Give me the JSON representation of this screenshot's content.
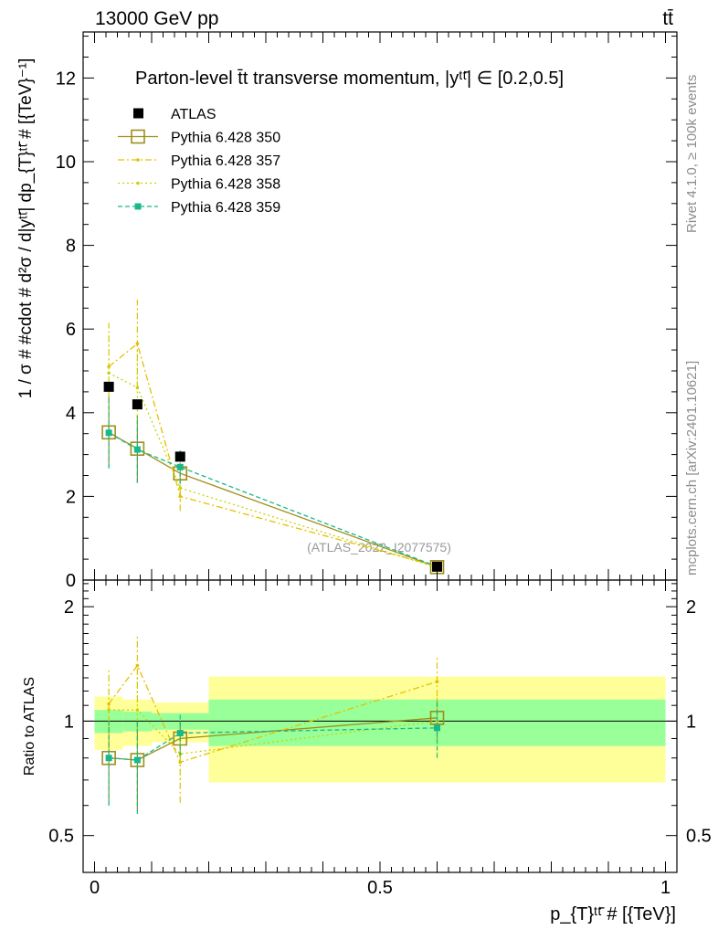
{
  "header": {
    "energy_label": "13000 GeV pp",
    "process_label": "tt̄"
  },
  "side_text": {
    "rivet": "Rivet 4.1.0, ≥ 100k events",
    "mcplots": "mcplots.cern.ch [arXiv:2401.10621]"
  },
  "chart_data": {
    "type": "line",
    "title": "Parton-level t̄t transverse momentum, |yᵗᵗ̄| ∈ [0.2,0.5]",
    "watermark": "(ATLAS_2022_I2077575)",
    "ylabel": "1 / σ # #cdot # d²σ / d|yᵗᵗ̄| dp_{T}ᵗᵗ̄ # [{TeV}⁻¹]",
    "ratio_ylabel": "Ratio to ATLAS",
    "xlabel": "p_{T}ᵗᵗ̄ # [{TeV}]",
    "xlim": [
      -0.02,
      1.02
    ],
    "ylim": [
      0,
      13.1
    ],
    "ratio_ylim": [
      0.4,
      2.35
    ],
    "x_ticks": [
      0,
      0.5,
      1
    ],
    "x_tick_labels": [
      "0",
      "0.5",
      "1"
    ],
    "y_ticks": [
      0,
      2,
      4,
      6,
      8,
      10,
      12
    ],
    "y_tick_labels": [
      "0",
      "2",
      "4",
      "6",
      "8",
      "10",
      "12"
    ],
    "ratio_ticks": [
      0.5,
      1,
      2
    ],
    "ratio_tick_labels": [
      "0.5",
      "1",
      "2"
    ],
    "bins": [
      {
        "lo": 0.0,
        "hi": 0.05,
        "stat": 0.07,
        "tot": 0.16
      },
      {
        "lo": 0.05,
        "hi": 0.1,
        "stat": 0.06,
        "tot": 0.14
      },
      {
        "lo": 0.1,
        "hi": 0.2,
        "stat": 0.05,
        "tot": 0.12
      },
      {
        "lo": 0.2,
        "hi": 1.0,
        "stat": 0.14,
        "tot": 0.31
      }
    ],
    "data": {
      "name": "ATLAS",
      "x": [
        0.025,
        0.075,
        0.15,
        0.6
      ],
      "y": [
        4.62,
        4.2,
        2.95,
        0.32
      ],
      "err": [
        0.1,
        0.1,
        0.08,
        0.02
      ]
    },
    "series": [
      {
        "name": "Pythia 6.428 350",
        "color": "#9e8f1a",
        "style": "solid",
        "marker": "open-square",
        "values": [
          3.53,
          3.14,
          2.55,
          0.31
        ],
        "err": [
          0.85,
          0.8,
          0.25,
          0.03
        ],
        "ratio": [
          0.8,
          0.79,
          0.9,
          1.02
        ],
        "ratio_err": [
          0.2,
          0.21,
          0.1,
          0.12
        ]
      },
      {
        "name": "Pythia 6.428 357",
        "color": "#e6c000",
        "style": "dashdot",
        "marker": "small-dot",
        "values": [
          5.1,
          5.65,
          2.0,
          0.33
        ],
        "err": [
          1.05,
          1.05,
          0.35,
          0.04
        ],
        "ratio": [
          1.11,
          1.4,
          0.78,
          1.27
        ],
        "ratio_err": [
          0.27,
          0.28,
          0.17,
          0.2
        ]
      },
      {
        "name": "Pythia 6.428 358",
        "color": "#c8d400",
        "style": "dotted",
        "marker": "small-dot",
        "values": [
          4.95,
          4.6,
          2.2,
          0.3
        ],
        "err": [
          1.0,
          0.9,
          0.3,
          0.04
        ],
        "ratio": [
          1.07,
          1.07,
          0.82,
          1.0
        ],
        "ratio_err": [
          0.23,
          0.24,
          0.12,
          0.18
        ]
      },
      {
        "name": "Pythia 6.428 359",
        "color": "#19b88a",
        "style": "dashed",
        "marker": "filled-square",
        "values": [
          3.52,
          3.12,
          2.7,
          0.32
        ],
        "err": [
          0.85,
          0.8,
          0.4,
          0.03
        ],
        "ratio": [
          0.8,
          0.79,
          0.93,
          0.96
        ],
        "ratio_err": [
          0.2,
          0.22,
          0.12,
          0.16
        ]
      }
    ]
  }
}
